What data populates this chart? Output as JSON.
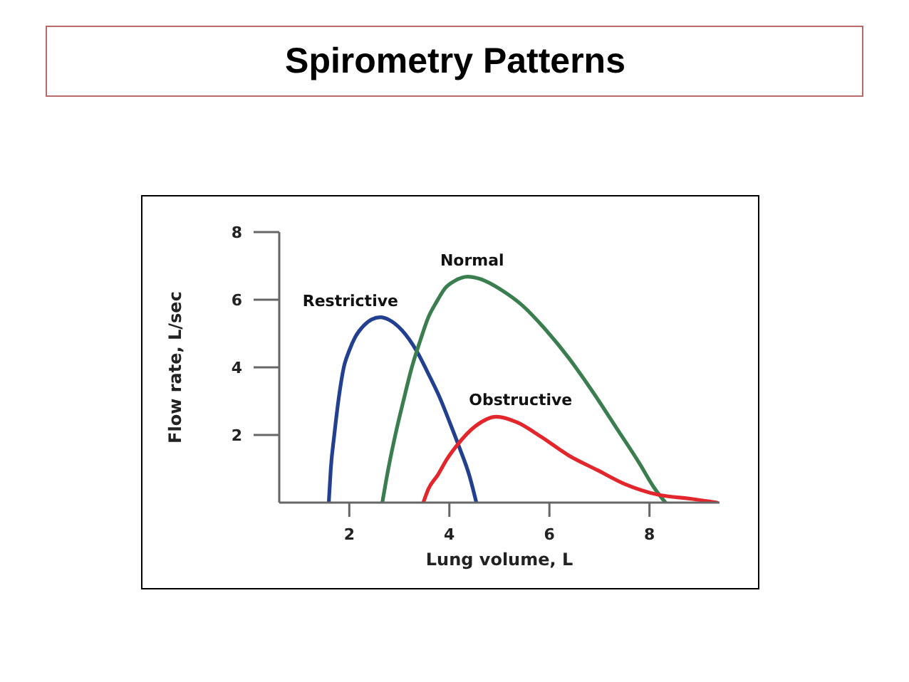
{
  "chart_data": {
    "type": "line",
    "title": "Spirometry Patterns",
    "xlabel": "Lung volume, L",
    "ylabel": "Flow rate, L/sec",
    "xlim": [
      0.6,
      9.4
    ],
    "xticks": [
      2,
      4,
      6,
      8
    ],
    "ylim": [
      0,
      8
    ],
    "yticks": [
      2,
      4,
      6,
      8
    ],
    "series": [
      {
        "name": "Restrictive",
        "color": "#22408f",
        "x": [
          1.59,
          1.63,
          1.7,
          1.79,
          1.89,
          2.0,
          2.12,
          2.3,
          2.45,
          2.62,
          2.8,
          3.05,
          3.34,
          3.6,
          3.81,
          4.0,
          4.19,
          4.4,
          4.54
        ],
        "values": [
          0,
          1.0,
          2.0,
          3.1,
          4.0,
          4.5,
          4.9,
          5.25,
          5.42,
          5.48,
          5.4,
          5.1,
          4.5,
          3.75,
          3.1,
          2.4,
          1.67,
          0.8,
          0
        ]
      },
      {
        "name": "Normal",
        "color": "#3a7d4f",
        "x": [
          2.66,
          2.78,
          2.92,
          3.08,
          3.25,
          3.42,
          3.58,
          3.75,
          3.91,
          4.1,
          4.37,
          4.6,
          5.08,
          5.46,
          5.92,
          6.39,
          6.86,
          7.33,
          7.8,
          8.08,
          8.32
        ],
        "values": [
          0,
          1.0,
          2.0,
          3.0,
          4.0,
          4.8,
          5.48,
          5.95,
          6.33,
          6.55,
          6.68,
          6.62,
          6.25,
          5.83,
          5.12,
          4.27,
          3.29,
          2.23,
          1.16,
          0.47,
          0
        ]
      },
      {
        "name": "Obstructive",
        "color": "#e3262b",
        "x": [
          3.48,
          3.58,
          3.77,
          3.95,
          4.14,
          4.52,
          4.94,
          5.36,
          5.83,
          6.39,
          6.96,
          7.52,
          8.18,
          8.84,
          9.35
        ],
        "values": [
          0,
          0.4,
          0.82,
          1.28,
          1.67,
          2.26,
          2.54,
          2.37,
          1.95,
          1.39,
          0.96,
          0.54,
          0.23,
          0.11,
          0
        ]
      }
    ]
  }
}
